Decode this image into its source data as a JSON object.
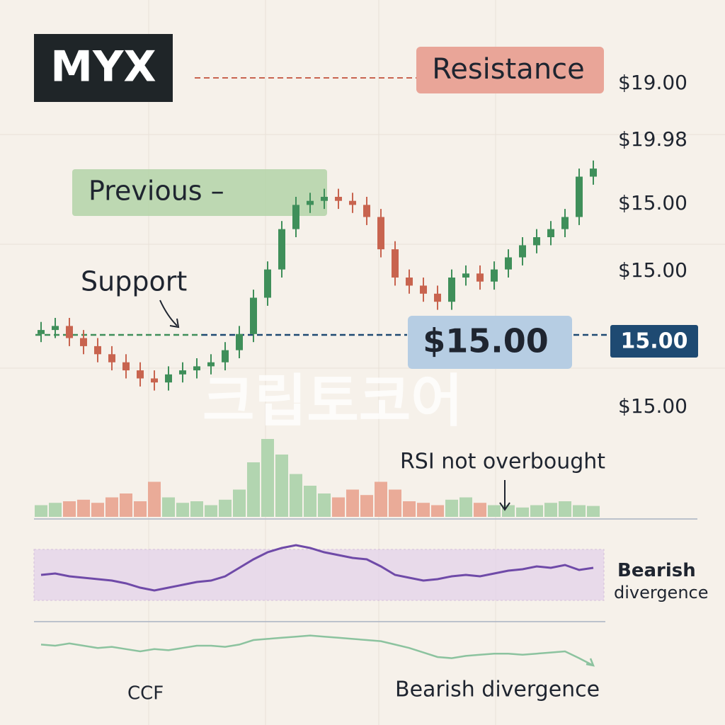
{
  "chart_data": [
    {
      "type": "candlestick",
      "title": "MYX",
      "annotations": {
        "resistance": "Resistance",
        "previous": "Previous –",
        "support": "Support",
        "price_tag": "$15.00",
        "level_tag": "15.00",
        "watermark": "크립토코어"
      },
      "price_labels": [
        "$19.00",
        "$19.98",
        "$15.00",
        "$15.00",
        "$15.00"
      ],
      "open": [
        26,
        27,
        28,
        25,
        23,
        21,
        19,
        17,
        15,
        14,
        16,
        17,
        18,
        19,
        22,
        26,
        35,
        42,
        52,
        58,
        59,
        60,
        59,
        58,
        55,
        47,
        40,
        38,
        36,
        34,
        40,
        41,
        39,
        42,
        45,
        48,
        50,
        52,
        55,
        65
      ],
      "high": [
        29,
        30,
        30,
        27,
        25,
        23,
        21,
        19,
        17,
        18,
        19,
        20,
        21,
        24,
        28,
        37,
        44,
        54,
        60,
        61,
        62,
        62,
        61,
        60,
        57,
        49,
        42,
        40,
        38,
        42,
        43,
        43,
        44,
        47,
        50,
        52,
        54,
        57,
        67,
        69
      ],
      "low": [
        24,
        25,
        23,
        21,
        19,
        17,
        15,
        13,
        12,
        12,
        14,
        15,
        16,
        17,
        20,
        24,
        33,
        40,
        50,
        56,
        57,
        57,
        56,
        53,
        45,
        38,
        36,
        34,
        32,
        32,
        38,
        37,
        37,
        40,
        43,
        46,
        48,
        50,
        53,
        63
      ],
      "close": [
        27,
        28,
        25,
        23,
        21,
        19,
        17,
        15,
        14,
        16,
        17,
        18,
        19,
        22,
        26,
        35,
        42,
        52,
        58,
        59,
        60,
        59,
        58,
        55,
        47,
        40,
        38,
        36,
        34,
        40,
        41,
        39,
        42,
        45,
        48,
        50,
        52,
        55,
        65,
        67
      ],
      "up_color": "#3f8f5a",
      "down_color": "#c8644f",
      "ylim": [
        0,
        100
      ]
    },
    {
      "type": "bar",
      "annotation": "RSI not overbought",
      "values": [
        15,
        18,
        20,
        22,
        18,
        25,
        30,
        20,
        45,
        25,
        18,
        20,
        15,
        22,
        35,
        70,
        100,
        80,
        55,
        40,
        30,
        25,
        35,
        28,
        45,
        35,
        20,
        18,
        15,
        22,
        25,
        18,
        15,
        15,
        12,
        15,
        18,
        20,
        15,
        14
      ],
      "up_color": "#b2d5b0",
      "down_color": "#eaab98",
      "ylim": [
        0,
        100
      ]
    },
    {
      "type": "line",
      "annotation": "Bearish divergence",
      "color": "#6f4aa8",
      "band": [
        12,
        84
      ],
      "band_color": "#e4d3ea",
      "values": [
        48,
        50,
        46,
        44,
        42,
        40,
        36,
        30,
        26,
        30,
        34,
        38,
        40,
        46,
        58,
        70,
        80,
        86,
        90,
        86,
        80,
        76,
        72,
        70,
        60,
        48,
        44,
        40,
        42,
        46,
        48,
        46,
        50,
        54,
        56,
        60,
        58,
        62,
        55,
        58
      ],
      "ylim": [
        0,
        100
      ]
    },
    {
      "type": "line",
      "annotation": "Bearish divergence",
      "x_label": "CCF",
      "color": "#8cc39f",
      "values": [
        62,
        60,
        64,
        60,
        56,
        58,
        54,
        50,
        54,
        52,
        56,
        60,
        60,
        58,
        62,
        70,
        72,
        74,
        76,
        78,
        76,
        74,
        72,
        70,
        68,
        62,
        56,
        48,
        40,
        38,
        42,
        44,
        46,
        46,
        44,
        46,
        48,
        50,
        38,
        25
      ],
      "ylim": [
        0,
        100
      ]
    }
  ]
}
